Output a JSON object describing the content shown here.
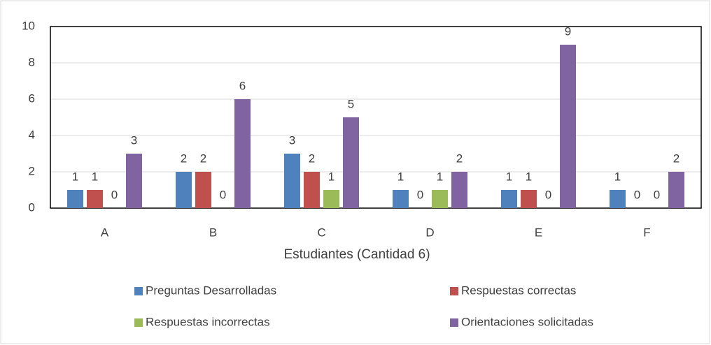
{
  "chart_data": {
    "type": "bar",
    "x_label": "Estudiantes  (Cantidad 6)",
    "categories": [
      "A",
      "B",
      "C",
      "D",
      "E",
      "F"
    ],
    "series": [
      {
        "name": "Preguntas Desarrolladas",
        "color": "#4f81bd",
        "values": [
          1,
          2,
          3,
          1,
          1,
          1
        ]
      },
      {
        "name": "Respuestas correctas",
        "color": "#c0504d",
        "values": [
          1,
          2,
          2,
          0,
          1,
          0
        ]
      },
      {
        "name": "Respuestas incorrectas",
        "color": "#9bbb59",
        "values": [
          0,
          0,
          1,
          1,
          0,
          0
        ]
      },
      {
        "name": "Orientaciones solicitadas",
        "color": "#8064a2",
        "values": [
          3,
          6,
          5,
          2,
          9,
          2
        ]
      }
    ],
    "ylim": [
      0,
      10
    ],
    "yticks": [
      0,
      2,
      4,
      6,
      8,
      10
    ],
    "grid": true,
    "legend": "bottom"
  }
}
